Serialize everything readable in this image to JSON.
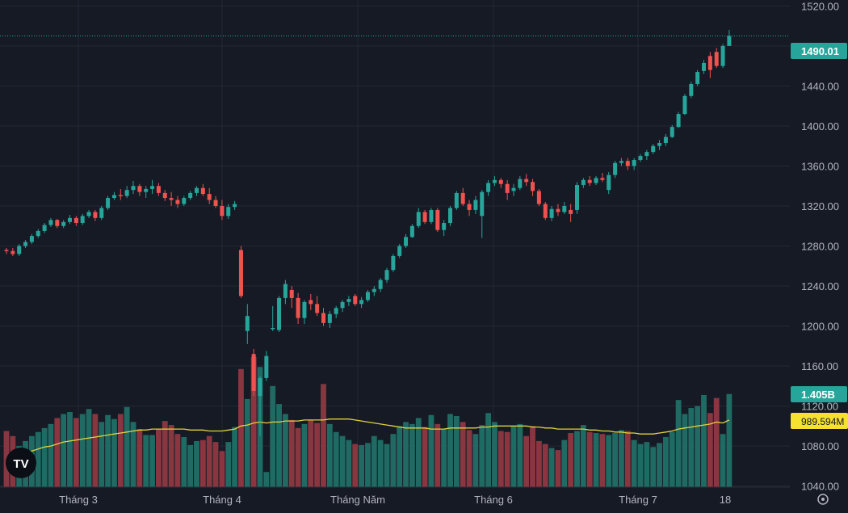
{
  "chart_data": {
    "type": "candlestick",
    "x_labels": [
      "Tháng 3",
      "Tháng 4",
      "Tháng Năm",
      "Tháng 6",
      "Tháng 7",
      "18"
    ],
    "y_ticks": [
      1040,
      1080,
      1120,
      1160,
      1200,
      1240,
      1280,
      1320,
      1360,
      1400,
      1440,
      1480,
      1520
    ],
    "ylim": [
      1030,
      1530
    ],
    "last_price": {
      "label": "1490.01",
      "value": 1490.01
    },
    "volume_label": "1.405B",
    "volume_ma_label": "989.594M",
    "grid": true,
    "colors": {
      "background": "#161a25",
      "grid": "#242835",
      "up": "#26a69a",
      "down": "#ef5350",
      "up_volume": "#1f6b63",
      "down_volume": "#8a3641",
      "ma": "#e2d13c",
      "axis_text": "#b2b5be"
    },
    "candles": [
      [
        1276,
        1278,
        1272,
        1275
      ],
      [
        1275,
        1278,
        1270,
        1272
      ],
      [
        1272,
        1282,
        1270,
        1280
      ],
      [
        1280,
        1286,
        1278,
        1284
      ],
      [
        1284,
        1292,
        1282,
        1290
      ],
      [
        1290,
        1297,
        1288,
        1295
      ],
      [
        1295,
        1303,
        1293,
        1301
      ],
      [
        1301,
        1308,
        1299,
        1306
      ],
      [
        1306,
        1307,
        1298,
        1300
      ],
      [
        1300,
        1306,
        1298,
        1304
      ],
      [
        1304,
        1311,
        1302,
        1308
      ],
      [
        1308,
        1310,
        1300,
        1303
      ],
      [
        1303,
        1312,
        1301,
        1310
      ],
      [
        1310,
        1316,
        1308,
        1314
      ],
      [
        1314,
        1316,
        1305,
        1308
      ],
      [
        1308,
        1320,
        1306,
        1318
      ],
      [
        1318,
        1330,
        1316,
        1328
      ],
      [
        1328,
        1334,
        1326,
        1331
      ],
      [
        1331,
        1337,
        1326,
        1330
      ],
      [
        1330,
        1340,
        1328,
        1336
      ],
      [
        1336,
        1345,
        1332,
        1340
      ],
      [
        1340,
        1342,
        1330,
        1334
      ],
      [
        1334,
        1340,
        1328,
        1337
      ],
      [
        1337,
        1346,
        1332,
        1340
      ],
      [
        1340,
        1343,
        1330,
        1333
      ],
      [
        1333,
        1336,
        1325,
        1328
      ],
      [
        1328,
        1334,
        1320,
        1326
      ],
      [
        1326,
        1330,
        1318,
        1322
      ],
      [
        1322,
        1330,
        1320,
        1328
      ],
      [
        1328,
        1335,
        1326,
        1333
      ],
      [
        1333,
        1340,
        1330,
        1338
      ],
      [
        1338,
        1342,
        1330,
        1332
      ],
      [
        1332,
        1338,
        1322,
        1326
      ],
      [
        1326,
        1330,
        1318,
        1320
      ],
      [
        1320,
        1326,
        1306,
        1310
      ],
      [
        1310,
        1322,
        1307,
        1319
      ],
      [
        1319,
        1325,
        1316,
        1322
      ],
      [
        1276,
        1280,
        1228,
        1230
      ],
      [
        1195,
        1222,
        1182,
        1210
      ],
      [
        1172,
        1177,
        1130,
        1135
      ],
      [
        1130,
        1150,
        1090,
        1148
      ],
      [
        1148,
        1175,
        1145,
        1170
      ],
      [
        1198,
        1220,
        1195,
        1198
      ],
      [
        1196,
        1230,
        1194,
        1228
      ],
      [
        1228,
        1246,
        1222,
        1242
      ],
      [
        1236,
        1240,
        1218,
        1228
      ],
      [
        1228,
        1233,
        1202,
        1208
      ],
      [
        1208,
        1226,
        1202,
        1224
      ],
      [
        1226,
        1232,
        1216,
        1222
      ],
      [
        1222,
        1230,
        1210,
        1213
      ],
      [
        1213,
        1218,
        1200,
        1203
      ],
      [
        1203,
        1215,
        1198,
        1212
      ],
      [
        1212,
        1220,
        1208,
        1218
      ],
      [
        1218,
        1226,
        1214,
        1224
      ],
      [
        1224,
        1230,
        1220,
        1227
      ],
      [
        1230,
        1232,
        1220,
        1222
      ],
      [
        1222,
        1229,
        1218,
        1226
      ],
      [
        1226,
        1236,
        1224,
        1234
      ],
      [
        1234,
        1240,
        1230,
        1237
      ],
      [
        1237,
        1248,
        1234,
        1246
      ],
      [
        1246,
        1258,
        1243,
        1256
      ],
      [
        1256,
        1272,
        1254,
        1270
      ],
      [
        1270,
        1282,
        1268,
        1280
      ],
      [
        1280,
        1292,
        1278,
        1289
      ],
      [
        1289,
        1302,
        1288,
        1300
      ],
      [
        1300,
        1318,
        1298,
        1314
      ],
      [
        1314,
        1316,
        1302,
        1304
      ],
      [
        1304,
        1318,
        1302,
        1316
      ],
      [
        1316,
        1318,
        1294,
        1296
      ],
      [
        1296,
        1306,
        1290,
        1303
      ],
      [
        1303,
        1320,
        1300,
        1318
      ],
      [
        1318,
        1335,
        1316,
        1333
      ],
      [
        1333,
        1338,
        1320,
        1322
      ],
      [
        1322,
        1326,
        1310,
        1316
      ],
      [
        1316,
        1330,
        1312,
        1326
      ],
      [
        1310,
        1336,
        1288,
        1334
      ],
      [
        1334,
        1346,
        1330,
        1343
      ],
      [
        1343,
        1350,
        1340,
        1346
      ],
      [
        1346,
        1348,
        1338,
        1342
      ],
      [
        1342,
        1346,
        1326,
        1333
      ],
      [
        1335,
        1342,
        1330,
        1338
      ],
      [
        1338,
        1350,
        1336,
        1347
      ],
      [
        1347,
        1352,
        1340,
        1344
      ],
      [
        1344,
        1347,
        1330,
        1335
      ],
      [
        1335,
        1337,
        1320,
        1322
      ],
      [
        1322,
        1324,
        1306,
        1308
      ],
      [
        1308,
        1320,
        1305,
        1317
      ],
      [
        1317,
        1322,
        1310,
        1314
      ],
      [
        1314,
        1324,
        1312,
        1320
      ],
      [
        1316,
        1322,
        1304,
        1312
      ],
      [
        1316,
        1344,
        1312,
        1341
      ],
      [
        1341,
        1348,
        1338,
        1346
      ],
      [
        1346,
        1350,
        1340,
        1343
      ],
      [
        1343,
        1350,
        1341,
        1348
      ],
      [
        1348,
        1353,
        1344,
        1346
      ],
      [
        1336,
        1354,
        1332,
        1351
      ],
      [
        1351,
        1365,
        1348,
        1363
      ],
      [
        1363,
        1368,
        1360,
        1365
      ],
      [
        1365,
        1368,
        1356,
        1360
      ],
      [
        1360,
        1368,
        1356,
        1366
      ],
      [
        1366,
        1372,
        1364,
        1370
      ],
      [
        1370,
        1376,
        1366,
        1374
      ],
      [
        1374,
        1382,
        1372,
        1380
      ],
      [
        1380,
        1386,
        1376,
        1383
      ],
      [
        1383,
        1392,
        1380,
        1389
      ],
      [
        1389,
        1401,
        1388,
        1399
      ],
      [
        1399,
        1414,
        1398,
        1412
      ],
      [
        1412,
        1432,
        1411,
        1430
      ],
      [
        1430,
        1444,
        1428,
        1442
      ],
      [
        1442,
        1456,
        1440,
        1454
      ],
      [
        1455,
        1466,
        1452,
        1463
      ],
      [
        1470,
        1474,
        1448,
        1456
      ],
      [
        1474,
        1478,
        1458,
        1460
      ],
      [
        1460,
        1482,
        1458,
        1480
      ],
      [
        1480,
        1496,
        1480,
        1490
      ]
    ],
    "volumes": [
      1095,
      1090,
      1080,
      1085,
      1090,
      1094,
      1098,
      1102,
      1108,
      1112,
      1114,
      1108,
      1112,
      1117,
      1112,
      1104,
      1111,
      1107,
      1112,
      1119,
      1104,
      1097,
      1091,
      1091,
      1097,
      1105,
      1101,
      1092,
      1089,
      1081,
      1085,
      1086,
      1090,
      1084,
      1075,
      1084,
      1099,
      1157,
      1127,
      1169,
      1159,
      1054,
      1140,
      1122,
      1112,
      1106,
      1098,
      1102,
      1106,
      1103,
      1142,
      1102,
      1094,
      1090,
      1086,
      1082,
      1081,
      1083,
      1090,
      1086,
      1082,
      1092,
      1100,
      1104,
      1102,
      1108,
      1099,
      1111,
      1102,
      1097,
      1112,
      1110,
      1104,
      1096,
      1092,
      1101,
      1113,
      1104,
      1095,
      1094,
      1100,
      1102,
      1090,
      1100,
      1085,
      1082,
      1078,
      1076,
      1086,
      1093,
      1095,
      1101,
      1094,
      1093,
      1092,
      1091,
      1093,
      1096,
      1095,
      1086,
      1082,
      1084,
      1079,
      1083,
      1089,
      1094,
      1126,
      1112,
      1118,
      1120,
      1131,
      1113,
      1128,
      1092,
      1132
    ],
    "volume_ma": [
      1066,
      1069,
      1071,
      1073,
      1075,
      1077,
      1079,
      1080,
      1082,
      1084,
      1085,
      1086,
      1087,
      1088,
      1089,
      1090,
      1091,
      1092,
      1093,
      1094,
      1095,
      1096,
      1096,
      1097,
      1097,
      1097,
      1097,
      1097,
      1097,
      1096,
      1096,
      1096,
      1095,
      1095,
      1095,
      1096,
      1097,
      1100,
      1101,
      1103,
      1104,
      1103,
      1104,
      1104,
      1105,
      1105,
      1105,
      1106,
      1106,
      1106,
      1106,
      1107,
      1107,
      1107,
      1107,
      1106,
      1105,
      1104,
      1103,
      1102,
      1101,
      1100,
      1099,
      1098,
      1098,
      1098,
      1098,
      1097,
      1097,
      1097,
      1098,
      1098,
      1098,
      1098,
      1098,
      1099,
      1099,
      1100,
      1100,
      1100,
      1100,
      1100,
      1100,
      1099,
      1099,
      1098,
      1098,
      1097,
      1097,
      1097,
      1097,
      1097,
      1096,
      1096,
      1095,
      1095,
      1094,
      1094,
      1093,
      1093,
      1092,
      1092,
      1092,
      1093,
      1094,
      1095,
      1097,
      1098,
      1099,
      1100,
      1101,
      1102,
      1104,
      1103,
      1106
    ]
  }
}
